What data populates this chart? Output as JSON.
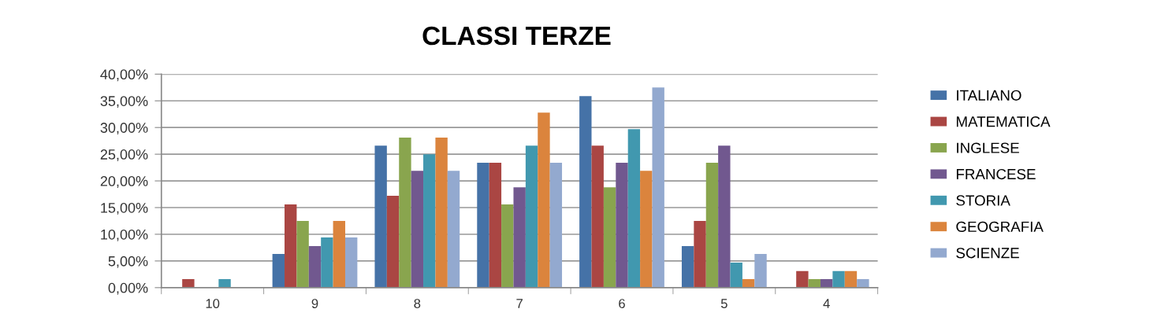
{
  "chart_data": {
    "type": "bar",
    "title": "CLASSI TERZE",
    "categories": [
      "10",
      "9",
      "8",
      "7",
      "6",
      "5",
      "4"
    ],
    "series": [
      {
        "name": "ITALIANO",
        "color": "#4572a7",
        "values": [
          0,
          6.3,
          26.6,
          23.4,
          35.9,
          7.8,
          0
        ]
      },
      {
        "name": "MATEMATICA",
        "color": "#aa4643",
        "values": [
          1.6,
          15.6,
          17.2,
          23.4,
          26.6,
          12.5,
          3.1
        ]
      },
      {
        "name": "INGLESE",
        "color": "#89a54e",
        "values": [
          0,
          12.5,
          28.1,
          15.6,
          18.8,
          23.4,
          1.6
        ]
      },
      {
        "name": "FRANCESE",
        "color": "#71588f",
        "values": [
          0,
          7.8,
          21.9,
          18.8,
          23.4,
          26.6,
          1.6
        ]
      },
      {
        "name": "STORIA",
        "color": "#4198af",
        "values": [
          1.6,
          9.4,
          25.0,
          26.6,
          29.7,
          4.7,
          3.1
        ]
      },
      {
        "name": "GEOGRAFIA",
        "color": "#db843d",
        "values": [
          0,
          12.5,
          28.1,
          32.8,
          21.9,
          1.6,
          3.1
        ]
      },
      {
        "name": "SCIENZE",
        "color": "#93a9cf",
        "values": [
          0,
          9.4,
          21.9,
          23.4,
          37.5,
          6.3,
          1.6
        ]
      }
    ],
    "ylim": [
      0,
      40
    ],
    "yticks": [
      {
        "value": 0,
        "label": "0,00%"
      },
      {
        "value": 5,
        "label": "5,00%"
      },
      {
        "value": 10,
        "label": "10,00%"
      },
      {
        "value": 15,
        "label": "15,00%"
      },
      {
        "value": 20,
        "label": "20,00%"
      },
      {
        "value": 25,
        "label": "25,00%"
      },
      {
        "value": 30,
        "label": "30,00%"
      },
      {
        "value": 35,
        "label": "35,00%"
      },
      {
        "value": 40,
        "label": "40,00%"
      }
    ],
    "grid": "y",
    "legend": "right"
  }
}
